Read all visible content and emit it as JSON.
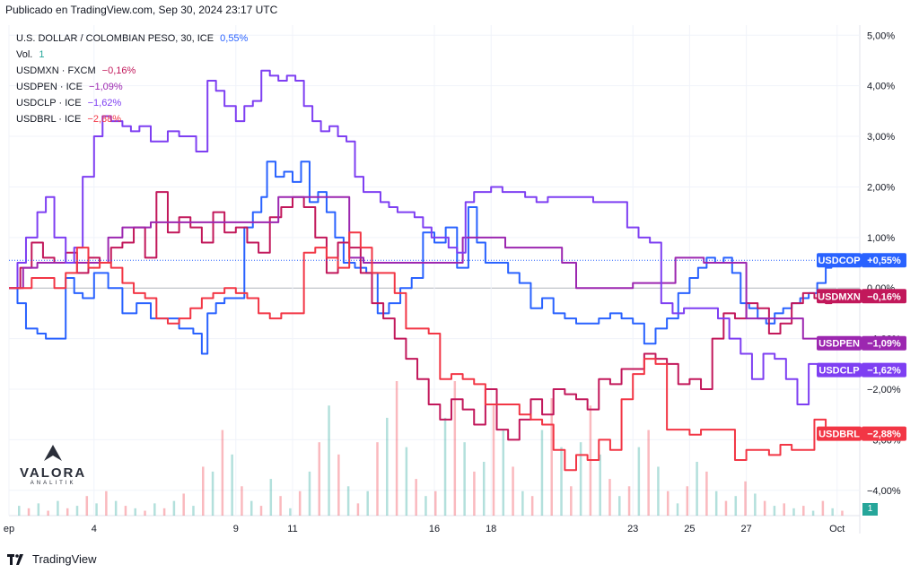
{
  "header": {
    "published": "Publicado en TradingView.com, Sep 30, 2024 23:17 UTC"
  },
  "legend": {
    "main": {
      "name": "U.S. DOLLAR / COLOMBIAN PESO, 30, ICE",
      "change": "0,55%",
      "color": "#2962ff"
    },
    "volume": {
      "name": "Vol.",
      "value": "1"
    },
    "series": [
      {
        "name": "USDMXN · FXCM",
        "change": "−0,16%",
        "color": "#c2185b"
      },
      {
        "name": "USDPEN · ICE",
        "change": "−1,09%",
        "color": "#9c27b0"
      },
      {
        "name": "USDCLP · ICE",
        "change": "−1,62%",
        "color": "#7e3ff2"
      },
      {
        "name": "USDBRL · ICE",
        "change": "−2,88%",
        "color": "#f23645"
      }
    ]
  },
  "watermark": {
    "brand": "VALORA",
    "sub": "ANALITIK"
  },
  "footer": {
    "brand": "TradingView"
  },
  "volume_badge": "1",
  "chart_data": {
    "type": "line",
    "ylabel": "",
    "ylim": [
      -4.5,
      5.2
    ],
    "yticks": [
      "5,00%",
      "4,00%",
      "3,00%",
      "2,00%",
      "1,00%",
      "0,00%",
      "−1,00%",
      "−2,00%",
      "−3,00%",
      "−4,00%"
    ],
    "yticks_values": [
      5,
      4,
      3,
      2,
      1,
      0,
      -1,
      -2,
      -3,
      -4
    ],
    "xticks": [
      {
        "label": "ep",
        "day": 1
      },
      {
        "label": "4",
        "day": 4
      },
      {
        "label": "9",
        "day": 9
      },
      {
        "label": "11",
        "day": 11
      },
      {
        "label": "16",
        "day": 16
      },
      {
        "label": "18",
        "day": 18
      },
      {
        "label": "23",
        "day": 23
      },
      {
        "label": "25",
        "day": 25
      },
      {
        "label": "27",
        "day": 27
      },
      {
        "label": "Oct",
        "day": 30.2
      }
    ],
    "xlim": [
      1,
      31
    ],
    "series": [
      {
        "name": "USDCOP",
        "tag_label": "USDCOP",
        "tag_value": "+0,55%",
        "color": "#2962ff",
        "last": 0.55,
        "x": [
          1,
          1.3,
          1.6,
          2,
          2.3,
          2.6,
          3,
          3.3,
          3.6,
          4,
          4.5,
          5,
          5.5,
          6,
          6.5,
          7,
          7.5,
          7.8,
          8,
          8.3,
          8.6,
          9,
          9.3,
          9.6,
          9.9,
          10.1,
          10.4,
          10.7,
          11,
          11.3,
          11.6,
          11.9,
          12.2,
          12.5,
          12.8,
          13.2,
          13.6,
          14,
          14.4,
          14.8,
          15.2,
          15.6,
          16,
          16.4,
          16.8,
          17.2,
          17.5,
          17.8,
          18.2,
          18.6,
          19,
          19.4,
          19.8,
          20.2,
          20.6,
          21,
          21.4,
          21.8,
          22.2,
          22.6,
          23,
          23.4,
          23.8,
          24.2,
          24.6,
          25,
          25.3,
          25.6,
          25.9,
          26.2,
          26.5,
          26.8,
          27.1,
          27.4,
          27.7,
          28,
          28.3,
          28.6,
          28.9,
          29.2,
          29.5,
          29.8,
          30
        ],
        "values": [
          0,
          -0.3,
          -0.8,
          -0.9,
          -1.0,
          -1.0,
          0.2,
          -0.1,
          -0.2,
          0.3,
          0.0,
          -0.5,
          -0.3,
          -0.6,
          -0.6,
          -0.8,
          -0.9,
          -1.3,
          -0.5,
          -0.3,
          -0.2,
          -0.2,
          1.2,
          1.5,
          1.8,
          2.5,
          2.2,
          2.3,
          2.1,
          2.5,
          1.7,
          1.9,
          1.5,
          1.0,
          0.5,
          0.4,
          0.3,
          -0.5,
          -0.3,
          0.0,
          0.2,
          1.1,
          0.9,
          1.2,
          0.4,
          1.6,
          0.9,
          0.5,
          0.5,
          0.3,
          0.1,
          -0.4,
          -0.2,
          -0.5,
          -0.6,
          -0.7,
          -0.7,
          -0.6,
          -0.5,
          -0.6,
          -0.7,
          -1.1,
          -0.8,
          -0.6,
          -0.1,
          0.2,
          0.4,
          0.6,
          0.5,
          0.6,
          0.3,
          -0.3,
          -0.4,
          -0.6,
          -0.7,
          -0.5,
          -0.4,
          -0.3,
          -0.2,
          -0.1,
          0.1,
          0.4,
          0.55
        ]
      },
      {
        "name": "USDMXN",
        "tag_label": "USDMXN",
        "tag_value": "−0,16%",
        "color": "#c2185b",
        "last": -0.16,
        "x": [
          1,
          1.4,
          1.8,
          2.2,
          2.6,
          3,
          3.4,
          3.8,
          4.2,
          4.6,
          5,
          5.4,
          5.8,
          6.2,
          6.6,
          7,
          7.4,
          7.8,
          8.2,
          8.6,
          9,
          9.4,
          9.8,
          10.2,
          10.6,
          11,
          11.4,
          11.8,
          12.2,
          12.6,
          13,
          13.4,
          13.8,
          14.2,
          14.6,
          15,
          15.4,
          15.8,
          16.2,
          16.6,
          17,
          17.4,
          17.8,
          18.2,
          18.6,
          19,
          19.4,
          19.8,
          20.2,
          20.6,
          21,
          21.4,
          21.8,
          22.2,
          22.6,
          23,
          23.4,
          23.8,
          24.2,
          24.6,
          25,
          25.4,
          25.8,
          26.2,
          26.6,
          27,
          27.4,
          27.8,
          28.2,
          28.6,
          29,
          29.4,
          29.8,
          30
        ],
        "values": [
          0,
          0.4,
          0.9,
          0.6,
          0.5,
          0.7,
          0.3,
          0.6,
          0.5,
          0.8,
          0.9,
          1.2,
          0.6,
          1.9,
          1.1,
          1.4,
          1.2,
          0.9,
          1.5,
          1.1,
          1.2,
          0.9,
          0.7,
          1.4,
          1.6,
          1.8,
          1.6,
          1.0,
          0.3,
          0.9,
          0.8,
          0.3,
          -0.3,
          -0.6,
          -1.0,
          -1.4,
          -1.8,
          -2.3,
          -2.6,
          -2.2,
          -2.4,
          -2.7,
          -2.0,
          -2.8,
          -3.0,
          -2.6,
          -2.2,
          -2.5,
          -2.0,
          -2.1,
          -2.2,
          -2.4,
          -1.8,
          -1.9,
          -1.6,
          -1.6,
          -1.3,
          -1.4,
          -1.5,
          -1.9,
          -1.8,
          -2.0,
          -1.0,
          -0.5,
          -0.6,
          -0.3,
          -0.4,
          -0.9,
          -0.7,
          -0.3,
          -0.1,
          -0.2,
          -0.3,
          -0.16
        ]
      },
      {
        "name": "USDPEN",
        "tag_label": "USDPEN",
        "tag_value": "−1,09%",
        "color": "#9c27b0",
        "last": -1.09,
        "x": [
          1,
          1.5,
          2,
          2.5,
          3,
          3.5,
          4,
          4.5,
          5,
          5.5,
          6,
          6.5,
          7,
          7.5,
          8,
          8.5,
          9,
          9.5,
          10,
          10.5,
          11,
          11.5,
          12,
          12.5,
          13,
          13.5,
          14,
          14.5,
          15,
          15.5,
          16,
          16.5,
          17,
          17.5,
          18,
          18.5,
          19,
          19.5,
          20,
          20.5,
          21,
          21.5,
          22,
          22.5,
          23,
          23.5,
          24,
          24.5,
          25,
          25.5,
          26,
          26.5,
          27,
          27.5,
          28,
          28.5,
          29,
          29.5,
          30
        ],
        "values": [
          0,
          0.4,
          0.5,
          0.5,
          0.5,
          0.5,
          0.5,
          1.0,
          1.2,
          1.2,
          1.3,
          1.3,
          1.3,
          1.3,
          1.3,
          1.3,
          1.3,
          1.3,
          1.3,
          1.8,
          1.8,
          1.8,
          1.8,
          1.8,
          0.6,
          0.5,
          0.5,
          0.5,
          0.5,
          0.5,
          0.5,
          0.5,
          1.0,
          1.0,
          1.0,
          0.8,
          0.8,
          0.8,
          0.8,
          0.5,
          0.0,
          0.0,
          0.0,
          0.0,
          0.1,
          0.1,
          0.1,
          0.6,
          0.6,
          0.5,
          0.5,
          0.5,
          -0.6,
          -0.6,
          -0.6,
          -0.6,
          -1.0,
          -1.0,
          -1.09
        ]
      },
      {
        "name": "USDCLP",
        "tag_label": "USDCLP",
        "tag_value": "−1,62%",
        "color": "#7e3ff2",
        "last": -1.62,
        "x": [
          1,
          1.3,
          1.6,
          2,
          2.3,
          2.6,
          3,
          3.3,
          3.6,
          4,
          4.3,
          4.6,
          5,
          5.3,
          5.6,
          6,
          6.3,
          6.6,
          7,
          7.3,
          7.6,
          8,
          8.3,
          8.6,
          9,
          9.3,
          9.6,
          9.9,
          10.2,
          10.5,
          10.8,
          11.1,
          11.4,
          11.7,
          12,
          12.3,
          12.6,
          12.9,
          13.2,
          13.5,
          13.8,
          14.1,
          14.4,
          14.7,
          15,
          15.3,
          15.6,
          15.9,
          16.2,
          16.5,
          16.8,
          17.1,
          17.4,
          17.7,
          18,
          18.4,
          18.8,
          19.2,
          19.6,
          20,
          20.4,
          20.8,
          21.2,
          21.6,
          22,
          22.4,
          22.8,
          23.2,
          23.6,
          24,
          24.4,
          24.8,
          25.2,
          25.6,
          26,
          26.4,
          26.8,
          27.2,
          27.6,
          28,
          28.4,
          28.8,
          29.2,
          29.6,
          30
        ],
        "values": [
          0,
          0.5,
          1.0,
          1.5,
          1.8,
          1.0,
          0.5,
          0.8,
          2.2,
          3.0,
          3.4,
          3.3,
          3.2,
          3.1,
          3.2,
          2.9,
          2.9,
          3.1,
          3.0,
          3.0,
          2.7,
          4.1,
          3.9,
          3.6,
          3.3,
          3.6,
          3.7,
          4.3,
          4.2,
          4.1,
          4.2,
          4.1,
          3.6,
          3.3,
          3.1,
          3.2,
          3.0,
          2.9,
          2.2,
          1.9,
          1.9,
          1.7,
          1.6,
          1.5,
          1.5,
          1.4,
          1.2,
          1.0,
          1.0,
          0.8,
          0.7,
          1.7,
          1.9,
          1.9,
          2.0,
          1.9,
          1.9,
          1.8,
          1.7,
          1.8,
          1.8,
          1.8,
          1.8,
          1.7,
          1.7,
          1.7,
          1.2,
          1.0,
          0.9,
          -0.3,
          -0.5,
          -0.4,
          -0.4,
          -0.4,
          -0.6,
          -1.0,
          -1.3,
          -1.8,
          -1.3,
          -1.4,
          -1.8,
          -2.3,
          -1.5,
          -1.6,
          -1.62
        ]
      },
      {
        "name": "USDBRL",
        "tag_label": "USDBRL",
        "tag_value": "−2,88%",
        "color": "#f23645",
        "last": -2.88,
        "x": [
          1,
          1.4,
          1.8,
          2.2,
          2.6,
          3,
          3.4,
          3.8,
          4.2,
          4.6,
          5,
          5.4,
          5.8,
          6.2,
          6.6,
          7,
          7.4,
          7.8,
          8.2,
          8.6,
          9,
          9.4,
          9.8,
          10.2,
          10.6,
          11,
          11.4,
          11.8,
          12.2,
          12.6,
          13,
          13.4,
          13.8,
          14.2,
          14.6,
          15,
          15.4,
          15.8,
          16.2,
          16.6,
          17,
          17.4,
          17.8,
          18.2,
          18.6,
          19,
          19.4,
          19.8,
          20.2,
          20.6,
          21,
          21.4,
          21.8,
          22.2,
          22.6,
          23,
          23.4,
          23.8,
          24.2,
          24.6,
          25,
          25.4,
          25.8,
          26.2,
          26.6,
          27,
          27.4,
          27.8,
          28.2,
          28.6,
          29,
          29.4,
          29.8,
          30
        ],
        "values": [
          0,
          0.0,
          0.2,
          0.2,
          0.0,
          0.3,
          0.8,
          0.4,
          0.5,
          0.4,
          0.1,
          -0.1,
          -0.2,
          -0.6,
          -0.7,
          -0.6,
          -0.4,
          -0.2,
          -0.1,
          0.0,
          -0.1,
          -0.2,
          -0.5,
          -0.6,
          -0.5,
          -0.5,
          0.7,
          0.8,
          0.6,
          0.4,
          1.1,
          0.8,
          0.3,
          0.3,
          -0.1,
          -0.8,
          -0.8,
          -0.9,
          -1.8,
          -1.7,
          -1.8,
          -1.9,
          -2.3,
          -2.3,
          -2.3,
          -2.5,
          -2.6,
          -2.7,
          -3.2,
          -3.6,
          -3.3,
          -3.4,
          -3.0,
          -3.2,
          -2.2,
          -1.7,
          -1.4,
          -1.5,
          -2.8,
          -2.8,
          -2.9,
          -2.8,
          -2.8,
          -2.8,
          -3.4,
          -3.2,
          -3.2,
          -3.3,
          -3.1,
          -3.2,
          -3.2,
          -2.6,
          -2.9,
          -2.88
        ]
      }
    ],
    "volume": [
      4,
      3,
      5,
      2,
      6,
      3,
      4,
      8,
      5,
      10,
      6,
      4,
      3,
      2,
      5,
      3,
      6,
      9,
      4,
      20,
      18,
      35,
      25,
      12,
      6,
      4,
      15,
      8,
      3,
      10,
      18,
      30,
      45,
      25,
      12,
      5,
      10,
      30,
      40,
      55,
      28,
      15,
      8,
      10,
      40,
      55,
      30,
      18,
      22,
      45,
      35,
      20,
      10,
      8,
      35,
      48,
      28,
      12,
      30,
      45,
      25,
      15,
      8,
      12,
      28,
      35,
      20,
      10,
      5,
      12,
      22,
      18,
      10,
      6,
      8,
      14,
      9,
      6,
      4,
      5,
      3,
      4,
      2,
      6,
      3,
      2
    ]
  }
}
